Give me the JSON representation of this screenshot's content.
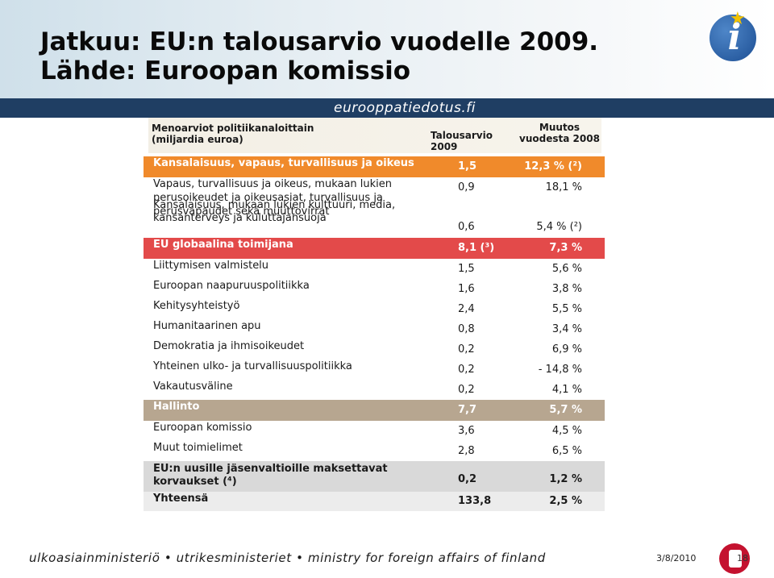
{
  "slide": {
    "title_line1": "Jatkuu: EU:n talousarvio vuodelle 2009.",
    "title_line2": "Lähde: Euroopan komissio",
    "brand_text": "eurooppatiedotus.fi",
    "footer_text": "ulkoasiainministeriö • utrikesministeriet • ministry for foreign affairs of finland",
    "date": "3/8/2010",
    "page_number": "18"
  },
  "table": {
    "header": {
      "category": "Menoarviot politiikanaloittain (miljardia euroa)",
      "budget": "Talousarvio 2009",
      "change": "Muutos vuodesta 2008"
    },
    "rows": [
      {
        "type": "section",
        "color": "#f08a2b",
        "label": "Kansalaisuus, vapaus, turvallisuus ja oikeus",
        "budget": "1,5",
        "change": "12,3 % (²)"
      },
      {
        "type": "item",
        "label": "Vapaus, turvallisuus ja oikeus, mukaan lukien perusoikeudet ja oikeusasiat, turvallisuus ja perusvapaudet sekä muuttovirrat",
        "budget": "0,9",
        "change": "18,1 %"
      },
      {
        "type": "item",
        "label": "Kansalaisuus, mukaan lukien kulttuuri, media, kansanterveys ja kuluttajansuoja",
        "budget": "0,6",
        "change": "5,4 % (²)"
      },
      {
        "type": "section",
        "color": "#e34a4a",
        "label": "EU globaalina toimijana",
        "budget": "8,1 (³)",
        "change": "7,3 %"
      },
      {
        "type": "item",
        "label": "Liittymisen valmistelu",
        "budget": "1,5",
        "change": "5,6 %"
      },
      {
        "type": "item",
        "label": "Euroopan naapuruuspolitiikka",
        "budget": "1,6",
        "change": "3,8 %"
      },
      {
        "type": "item",
        "label": "Kehitysyhteistyö",
        "budget": "2,4",
        "change": "5,5 %"
      },
      {
        "type": "item",
        "label": "Humanitaarinen apu",
        "budget": "0,8",
        "change": "3,4 %"
      },
      {
        "type": "item",
        "label": "Demokratia ja ihmisoikeudet",
        "budget": "0,2",
        "change": "6,9 %"
      },
      {
        "type": "item",
        "label": "Yhteinen ulko- ja turvallisuuspolitiikka",
        "budget": "0,2",
        "change": "- 14,8 %"
      },
      {
        "type": "item",
        "label": "Vakautusväline",
        "budget": "0,2",
        "change": "4,1 %"
      },
      {
        "type": "section",
        "color": "#b7a690",
        "label": "Hallinto",
        "budget": "7,7",
        "change": "5,7 %"
      },
      {
        "type": "item",
        "label": "Euroopan komissio",
        "budget": "3,6",
        "change": "4,5 %"
      },
      {
        "type": "item",
        "label": "Muut toimielimet",
        "budget": "2,8",
        "change": "6,5 %"
      },
      {
        "type": "section-grey",
        "color": "#d9d9d9",
        "label": "EU:n uusille jäsenvaltioille maksettavat korvaukset (⁴)",
        "budget": "0,2",
        "change": "1,2 %"
      },
      {
        "type": "total",
        "label": "Yhteensä",
        "budget": "133,8",
        "change": "2,5 %"
      }
    ]
  }
}
